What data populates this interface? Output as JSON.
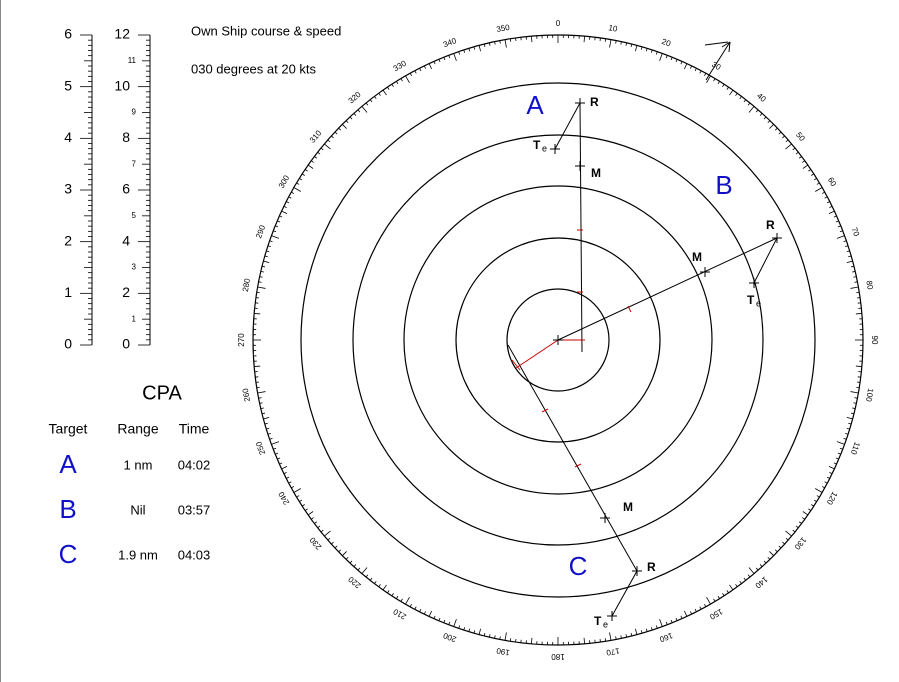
{
  "header": {
    "line1": "Own  Ship course & speed",
    "line2": "030 degrees at 20 kts"
  },
  "scales": [
    {
      "labels": [
        0,
        1,
        2,
        3,
        4,
        5,
        6
      ]
    },
    {
      "labels": [
        0,
        2,
        4,
        6,
        8,
        10,
        12
      ],
      "minor_labels": [
        1,
        3,
        5,
        7,
        9,
        11
      ]
    }
  ],
  "compass": {
    "labels": [
      0,
      10,
      20,
      30,
      40,
      50,
      60,
      70,
      80,
      90,
      100,
      110,
      120,
      130,
      140,
      150,
      160,
      170,
      180,
      190,
      200,
      210,
      220,
      230,
      240,
      250,
      260,
      270,
      280,
      290,
      300,
      310,
      320,
      330,
      340,
      350
    ]
  },
  "targets": [
    {
      "label": "A"
    },
    {
      "label": "B"
    },
    {
      "label": "C"
    }
  ],
  "markers": {
    "r": "R",
    "m": "M",
    "t": "T",
    "e": "e"
  },
  "cpa": {
    "title": "CPA",
    "headers": [
      "Target",
      "Range",
      "Time"
    ],
    "rows": [
      [
        "A",
        "1 nm",
        "04:02"
      ],
      [
        "B",
        "Nil",
        "03:57"
      ],
      [
        "C",
        "1.9 nm",
        "04:03"
      ]
    ]
  }
}
